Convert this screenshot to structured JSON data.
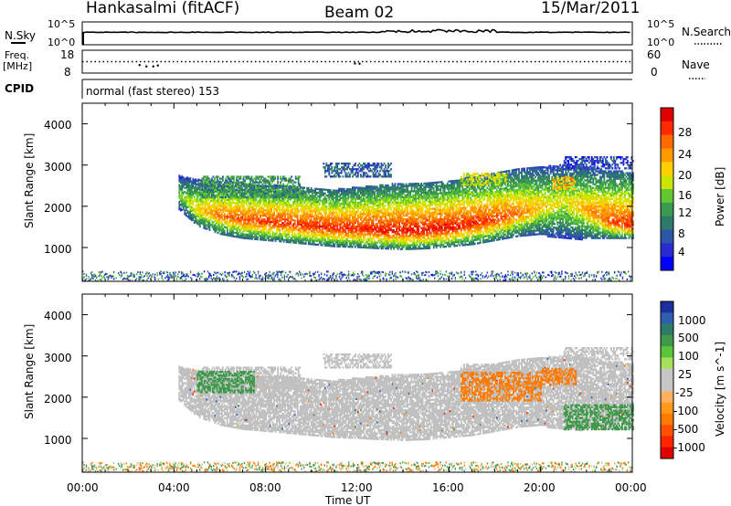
{
  "header": {
    "station": "Hankasalmi (fitACF)",
    "beam": "Beam 02",
    "date": "15/Mar/2011"
  },
  "strip_labels": {
    "nsky": "N.Sky",
    "nsearch": "N.Search",
    "freq_line1": "Freq.",
    "freq_line2": "[MHz]",
    "nave": "Nave",
    "cpid": "CPID",
    "cpid_value": "normal (fast stereo) 153"
  },
  "strip_ticks": {
    "noise_left": [
      "10^5",
      "10^0"
    ],
    "noise_right": [
      "10^5",
      "10^0"
    ],
    "freq_left": [
      "18",
      "8"
    ],
    "nave_right": [
      "60",
      "0"
    ]
  },
  "axes": {
    "ylabel": "Slant Range [km]",
    "xlabel": "Time UT",
    "yticks": [
      "4000",
      "3000",
      "2000",
      "1000"
    ],
    "xticks": [
      "00:00",
      "04:00",
      "08:00",
      "12:00",
      "16:00",
      "20:00",
      "00:00"
    ]
  },
  "colorbars": {
    "power": {
      "label": "Power [dB]",
      "ticks": [
        "28",
        "24",
        "20",
        "16",
        "12",
        "8",
        "4"
      ],
      "colors": [
        "#e00000",
        "#ff2a00",
        "#ff6a00",
        "#ff9a00",
        "#ffd000",
        "#c8e600",
        "#62c832",
        "#3a9a50",
        "#2e7a6a",
        "#2d55a8",
        "#2a2ad2",
        "#0000ff"
      ]
    },
    "velocity": {
      "label": "Velocity [m s^-1]",
      "ticks": [
        "1000",
        "500",
        "100",
        "25",
        "-25",
        "-100",
        "-500",
        "-1000"
      ],
      "colors": [
        "#1c2f9e",
        "#2d5fae",
        "#2f7a66",
        "#3e9a4a",
        "#5cc43a",
        "#a6e05a",
        "#c6c6c6",
        "#c6c6c6",
        "#ffb060",
        "#ff9a1a",
        "#ff7a00",
        "#ff5000",
        "#ff2400",
        "#e00000"
      ]
    }
  },
  "chart_data": {
    "type": "heatmap",
    "x_unit": "UT hours",
    "x_range": [
      0,
      24
    ],
    "y_range_km": [
      180,
      4500
    ],
    "ground_scatter_color": "#c0c0c0",
    "freq_scan_MHz": {
      "hours": [
        2.5,
        2.8,
        3.1,
        3.3,
        11.9,
        12.1
      ],
      "values": [
        11.5,
        10.9,
        10.9,
        11.3,
        12.2,
        12.1
      ]
    },
    "nave_level": 30,
    "noise_sky_level": 3.0,
    "echo_band": {
      "hours": [
        4.2,
        5.0,
        6.0,
        7.0,
        8.0,
        9.0,
        10.0,
        11.0,
        12.0,
        13.0,
        14.0,
        15.0,
        16.0,
        17.0,
        18.0,
        19.0,
        20.0,
        21.0,
        22.0,
        23.0,
        24.0
      ],
      "lower_km": [
        1900,
        1500,
        1300,
        1200,
        1150,
        1100,
        1050,
        1000,
        980,
        950,
        930,
        950,
        1000,
        1050,
        1150,
        1250,
        1300,
        1250,
        1200,
        1200,
        1200
      ],
      "core_km": [
        2250,
        1900,
        1750,
        1650,
        1600,
        1550,
        1500,
        1450,
        1430,
        1400,
        1380,
        1400,
        1450,
        1550,
        1650,
        1800,
        1950,
        2100,
        1900,
        1600,
        1500
      ],
      "upper_km": [
        2700,
        2600,
        2550,
        2500,
        2450,
        2450,
        2400,
        2350,
        2400,
        2450,
        2500,
        2500,
        2550,
        2650,
        2750,
        2850,
        2900,
        2950,
        2900,
        2800,
        2750
      ],
      "core_power_dB": [
        14,
        20,
        24,
        26,
        27,
        27,
        28,
        28,
        28,
        29,
        29,
        29,
        29,
        28,
        27,
        24,
        20,
        18,
        22,
        26,
        28
      ]
    },
    "upper_patches": [
      {
        "start": 5.2,
        "end": 9.5,
        "range_km": [
          2200,
          2700
        ],
        "power_dB": 10
      },
      {
        "start": 10.5,
        "end": 13.5,
        "range_km": [
          2700,
          3050
        ],
        "power_dB": 6
      },
      {
        "start": 16.5,
        "end": 18.5,
        "range_km": [
          2500,
          2800
        ],
        "power_dB": 16
      },
      {
        "start": 20.5,
        "end": 21.5,
        "range_km": [
          2400,
          2700
        ],
        "power_dB": 20
      },
      {
        "start": 21.0,
        "end": 24.0,
        "range_km": [
          2900,
          3200
        ],
        "power_dB": 4
      }
    ],
    "velocity_patches": [
      {
        "start": 16.5,
        "end": 20.0,
        "range_km": [
          1900,
          2600
        ],
        "velocity": -100
      },
      {
        "start": 20.0,
        "end": 21.5,
        "range_km": [
          2300,
          2700
        ],
        "velocity": -100
      },
      {
        "start": 21.0,
        "end": 24.0,
        "range_km": [
          1200,
          1800
        ],
        "velocity": 100
      },
      {
        "start": 5.0,
        "end": 7.5,
        "range_km": [
          2100,
          2600
        ],
        "velocity": 100
      }
    ]
  }
}
